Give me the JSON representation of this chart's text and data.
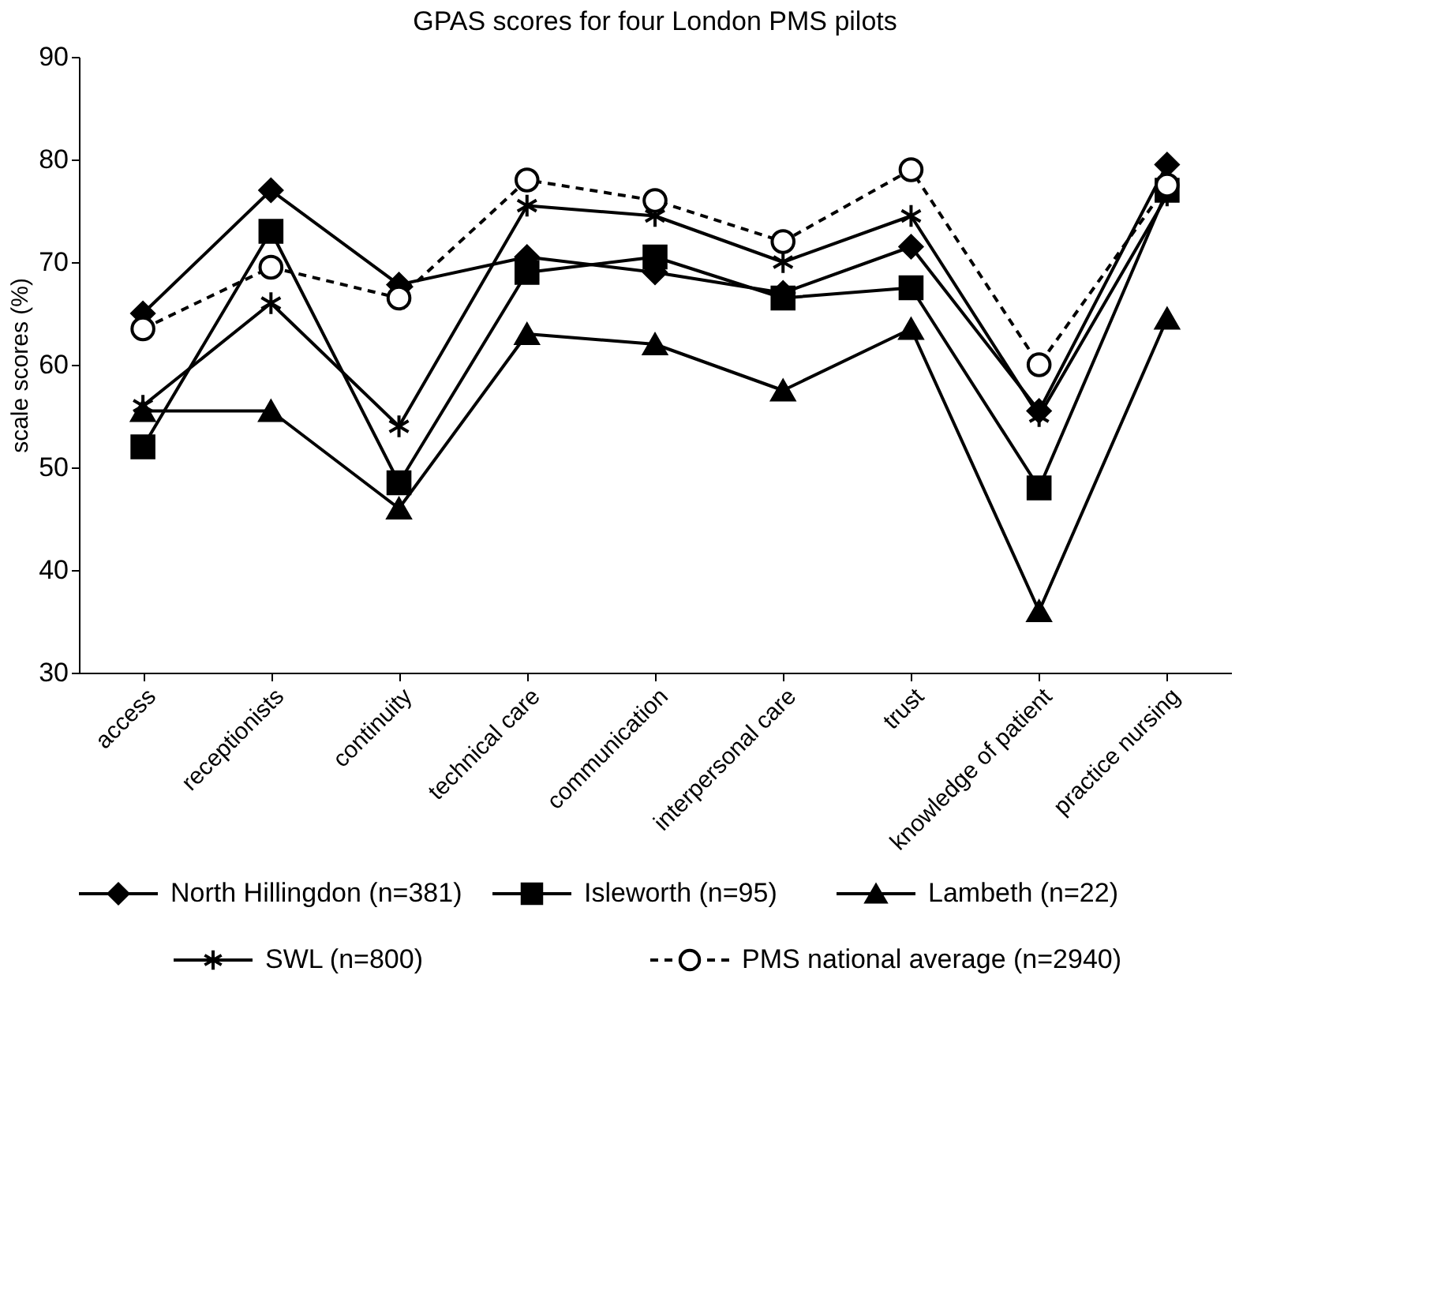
{
  "chart_data": {
    "type": "line",
    "title": "GPAS scores for four London PMS pilots",
    "ylabel": "scale scores (%)",
    "categories": [
      "access",
      "receptionists",
      "continuity",
      "technical care",
      "communication",
      "interpersonal care",
      "trust",
      "knowledge of patient",
      "practice nursing"
    ],
    "series": [
      {
        "name": "North Hillingdon (n=381)",
        "color": "#000000",
        "marker": "diamond",
        "line_style": "solid",
        "values": [
          65,
          77,
          67.8,
          70.5,
          69,
          67,
          71.5,
          55.5,
          79.5
        ]
      },
      {
        "name": "Isleworth (n=95)",
        "color": "#000000",
        "marker": "square",
        "line_style": "solid",
        "values": [
          52,
          73,
          48.5,
          69,
          70.5,
          66.5,
          67.5,
          48,
          77
        ]
      },
      {
        "name": "Lambeth (n=22)",
        "color": "#000000",
        "marker": "triangle",
        "line_style": "solid",
        "values": [
          55.5,
          55.5,
          46,
          63,
          62,
          57.5,
          63.5,
          36,
          64.5
        ]
      },
      {
        "name": "SWL (n=800)",
        "color": "#000000",
        "marker": "cross",
        "line_style": "solid",
        "values": [
          56,
          66,
          54,
          75.5,
          74.5,
          70,
          74.5,
          55,
          76.5
        ]
      },
      {
        "name": "PMS national average (n=2940)",
        "color": "#000000",
        "marker": "circle",
        "line_style": "dashed",
        "values": [
          63.5,
          69.5,
          66.5,
          78,
          76,
          72,
          79,
          60,
          77.5
        ]
      }
    ],
    "ylim": [
      30,
      90
    ],
    "yticks": [
      30,
      40,
      50,
      60,
      70,
      80,
      90
    ],
    "grid": false,
    "legend": "bottom"
  }
}
